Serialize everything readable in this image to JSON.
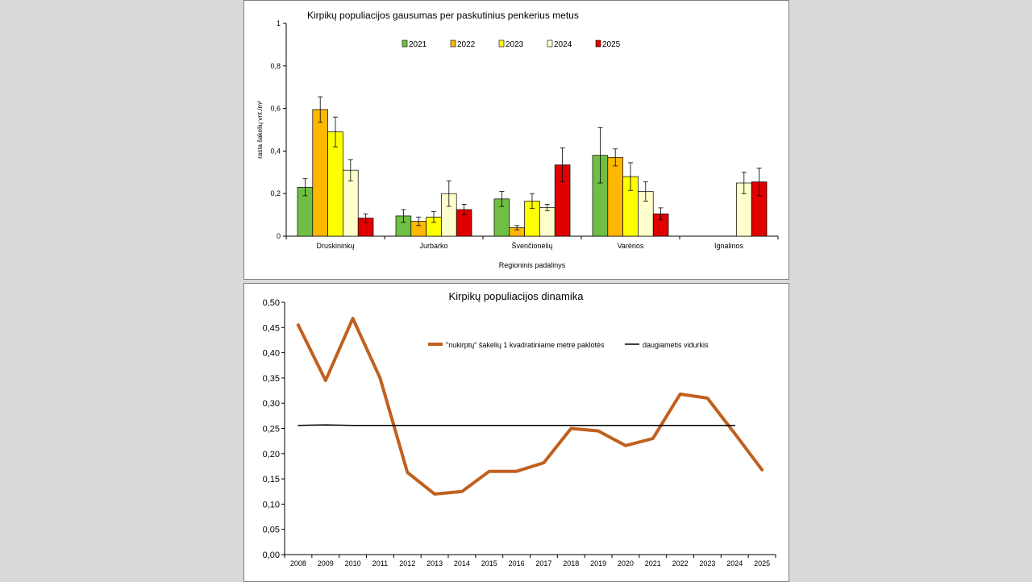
{
  "chart_data": [
    {
      "type": "bar",
      "title": "Kirpikų populiacijos gausumas per paskutinius penkerius metus",
      "xlabel": "Regioninis padalinys",
      "ylabel": "rasta šakelių vnt./m²",
      "ylim": [
        0,
        1
      ],
      "yticks": [
        "0",
        "0,2",
        "0,4",
        "0,6",
        "0,8",
        "1"
      ],
      "ytick_values": [
        0,
        0.2,
        0.4,
        0.6,
        0.8,
        1
      ],
      "legend_position": "top",
      "grid": false,
      "categories": [
        "Druskininkų",
        "Jurbarko",
        "Švenčionėlių",
        "Varėnos",
        "Ignalinos"
      ],
      "series": [
        {
          "name": "2021",
          "color": "#70bf44",
          "values": [
            0.23,
            0.095,
            0.175,
            0.38,
            null
          ],
          "errors": [
            0.04,
            0.03,
            0.035,
            0.13,
            null
          ]
        },
        {
          "name": "2022",
          "color": "#ffb800",
          "values": [
            0.595,
            0.07,
            0.04,
            0.37,
            null
          ],
          "errors": [
            0.06,
            0.02,
            0.01,
            0.04,
            null
          ]
        },
        {
          "name": "2023",
          "color": "#ffff00",
          "values": [
            0.49,
            0.09,
            0.165,
            0.28,
            null
          ],
          "errors": [
            0.07,
            0.025,
            0.035,
            0.065,
            null
          ]
        },
        {
          "name": "2024",
          "color": "#ffffcc",
          "values": [
            0.31,
            0.2,
            0.135,
            0.21,
            0.25
          ],
          "errors": [
            0.05,
            0.06,
            0.015,
            0.045,
            0.05
          ]
        },
        {
          "name": "2025",
          "color": "#e00000",
          "values": [
            0.085,
            0.125,
            0.335,
            0.105,
            0.255
          ],
          "errors": [
            0.02,
            0.025,
            0.08,
            0.028,
            0.065
          ]
        }
      ]
    },
    {
      "type": "line",
      "title": "Kirpikų populiacijos dinamika",
      "xlabel": "",
      "ylabel": "",
      "ylim": [
        0,
        0.5
      ],
      "yticks": [
        "0,00",
        "0,05",
        "0,10",
        "0,15",
        "0,20",
        "0,25",
        "0,30",
        "0,35",
        "0,40",
        "0,45",
        "0,50"
      ],
      "ytick_values": [
        0,
        0.05,
        0.1,
        0.15,
        0.2,
        0.25,
        0.3,
        0.35,
        0.4,
        0.45,
        0.5
      ],
      "legend_position": "top-right",
      "grid": false,
      "x": [
        "2008",
        "2009",
        "2010",
        "2011",
        "2012",
        "2013",
        "2014",
        "2015",
        "2016",
        "2017",
        "2018",
        "2019",
        "2020",
        "2021",
        "2022",
        "2023",
        "2024",
        "2025"
      ],
      "series": [
        {
          "name": "\"nukirptų\" šakelių 1 kvadratiniame metre paklotės",
          "color": "#c0601f",
          "values": [
            0.455,
            0.345,
            0.468,
            0.35,
            0.163,
            0.12,
            0.125,
            0.165,
            0.165,
            0.182,
            0.25,
            0.245,
            0.216,
            0.23,
            0.318,
            0.31,
            0.24,
            0.168
          ]
        },
        {
          "name": "daugiametis vidurkis",
          "color": "#000000",
          "values": [
            0.256,
            0.257,
            0.256,
            0.256,
            0.256,
            0.256,
            0.256,
            0.256,
            0.256,
            0.256,
            0.256,
            0.256,
            0.256,
            0.256,
            0.256,
            0.256,
            0.256,
            null
          ]
        }
      ]
    }
  ]
}
